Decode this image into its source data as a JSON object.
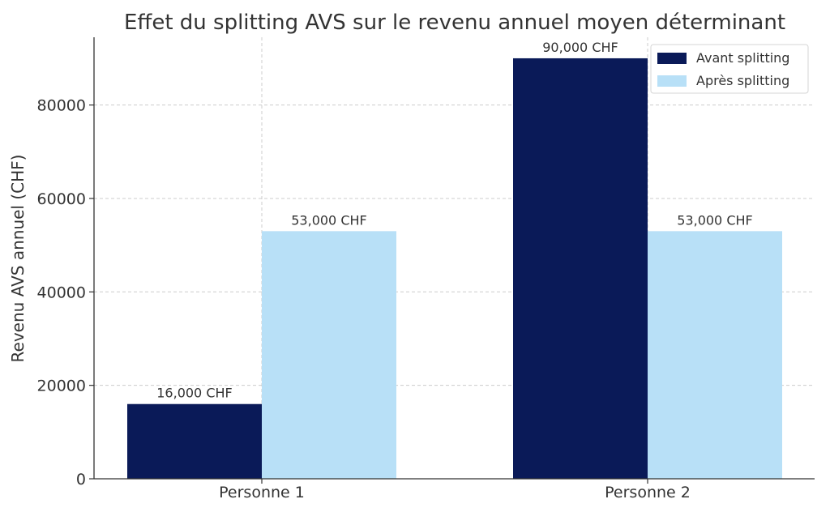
{
  "chart_data": {
    "type": "bar",
    "title": "Effet du splitting AVS sur le revenu annuel moyen déterminant",
    "xlabel": "",
    "ylabel": "Revenu AVS annuel (CHF)",
    "categories": [
      "Personne 1",
      "Personne 2"
    ],
    "series": [
      {
        "name": "Avant splitting",
        "values": [
          16000,
          90000
        ],
        "labels": [
          "16,000 CHF",
          "90,000 CHF"
        ],
        "color": "#0a1a58"
      },
      {
        "name": "Après splitting",
        "values": [
          53000,
          53000
        ],
        "labels": [
          "53,000 CHF",
          "53,000 CHF"
        ],
        "color": "#b8e0f7"
      }
    ],
    "ylim": [
      0,
      94500
    ],
    "yticks": [
      0,
      20000,
      40000,
      60000,
      80000
    ],
    "ytick_labels": [
      "0",
      "20000",
      "40000",
      "60000",
      "80000"
    ],
    "grid": true,
    "legend_position": "top-right"
  }
}
